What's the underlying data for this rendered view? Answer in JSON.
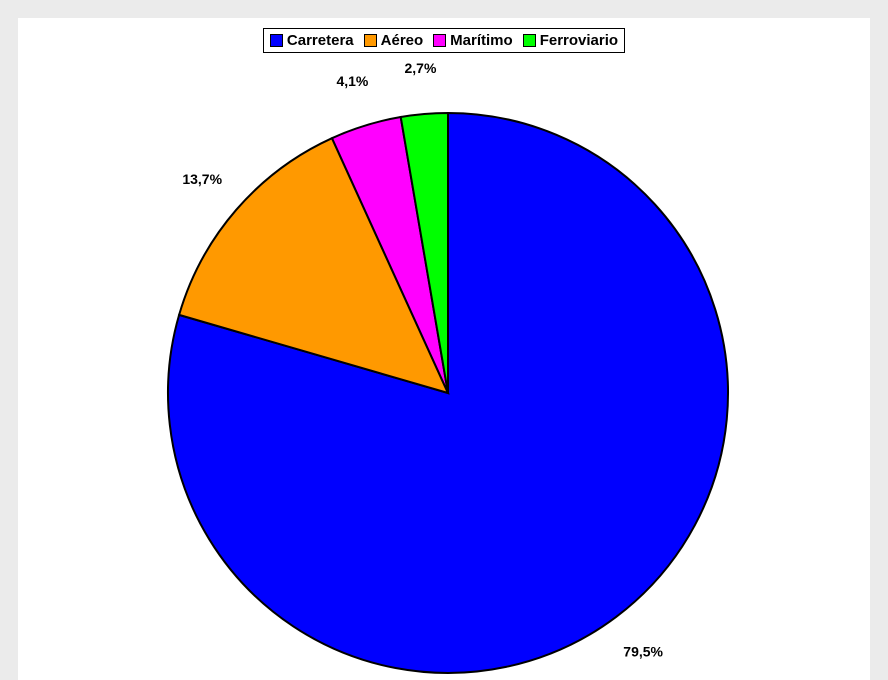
{
  "chart_data": {
    "type": "pie",
    "categories": [
      "Carretera",
      "Aéreo",
      "Marítimo",
      "Ferroviario"
    ],
    "values": [
      79.5,
      13.7,
      4.1,
      2.7
    ],
    "value_labels": [
      "79,5%",
      "13,7%",
      "4,1%",
      "2,7%"
    ],
    "colors": [
      "#0000ff",
      "#ff9900",
      "#ff00ff",
      "#00ff00"
    ],
    "legend": "top"
  }
}
